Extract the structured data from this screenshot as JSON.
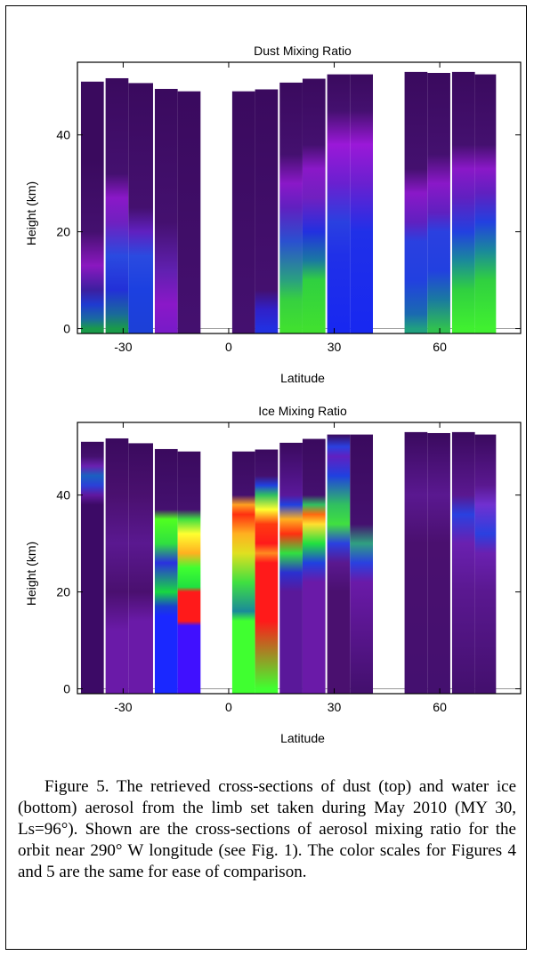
{
  "chart_data": [
    {
      "type": "heatmap",
      "title": "Dust Mixing Ratio",
      "xlabel": "Latitude",
      "ylabel": "Height (km)",
      "xlim": [
        -43,
        83
      ],
      "ylim": [
        -1,
        55
      ],
      "xticks": [
        -30,
        0,
        30,
        60
      ],
      "yticks": [
        0,
        20,
        40
      ],
      "grid": false,
      "columns": [
        {
          "x0": -42,
          "x1": -35.5,
          "top": 51,
          "stops": [
            [
              0,
              "#1a9a4a"
            ],
            [
              2,
              "#1a6aa0"
            ],
            [
              5,
              "#1f3ad0"
            ],
            [
              8,
              "#3c1fa0"
            ],
            [
              13,
              "#8a18c0"
            ],
            [
              20,
              "#44106f"
            ],
            [
              35,
              "#3a0a5e"
            ],
            [
              51,
              "#3a0a5e"
            ]
          ]
        },
        {
          "x0": -35,
          "x1": -28.5,
          "top": 51.7,
          "stops": [
            [
              0,
              "#1a9a4a"
            ],
            [
              3,
              "#1a6a9a"
            ],
            [
              8,
              "#2230d8"
            ],
            [
              15,
              "#2a4ae0"
            ],
            [
              22,
              "#7020c0"
            ],
            [
              27,
              "#8a18c8"
            ],
            [
              32,
              "#44106f"
            ],
            [
              51.7,
              "#3a0a5e"
            ]
          ]
        },
        {
          "x0": -28.5,
          "x1": -21.5,
          "top": 50.7,
          "stops": [
            [
              0,
              "#1c40d8"
            ],
            [
              8,
              "#1c40e0"
            ],
            [
              15,
              "#2a4ae0"
            ],
            [
              20,
              "#6020c0"
            ],
            [
              25,
              "#44106f"
            ],
            [
              50.7,
              "#3a0a5e"
            ]
          ]
        },
        {
          "x0": -21,
          "x1": -14.5,
          "top": 49.5,
          "stops": [
            [
              0,
              "#7a1ac8"
            ],
            [
              5,
              "#8a18c8"
            ],
            [
              12,
              "#6020b0"
            ],
            [
              22,
              "#44106f"
            ],
            [
              49.5,
              "#3a0a5e"
            ]
          ]
        },
        {
          "x0": -14.5,
          "x1": -8,
          "top": 49,
          "stops": [
            [
              0,
              "#44106f"
            ],
            [
              49,
              "#3a0a5e"
            ]
          ]
        },
        {
          "x0": 1,
          "x1": 7.5,
          "top": 49,
          "stops": [
            [
              0,
              "#44106f"
            ],
            [
              49,
              "#3a0a5e"
            ]
          ]
        },
        {
          "x0": 7.5,
          "x1": 14,
          "top": 49.4,
          "stops": [
            [
              0,
              "#2230e0"
            ],
            [
              4,
              "#3020c8"
            ],
            [
              8,
              "#44106f"
            ],
            [
              49.4,
              "#3a0a5e"
            ]
          ]
        },
        {
          "x0": 14.5,
          "x1": 21,
          "top": 50.8,
          "stops": [
            [
              0,
              "#40e030"
            ],
            [
              6,
              "#36d040"
            ],
            [
              10,
              "#2aa080"
            ],
            [
              18,
              "#2a50d0"
            ],
            [
              25,
              "#6020c0"
            ],
            [
              30,
              "#8a18c8"
            ],
            [
              36,
              "#44106f"
            ],
            [
              50.8,
              "#3a0a5e"
            ]
          ]
        },
        {
          "x0": 21,
          "x1": 27.5,
          "top": 51.6,
          "stops": [
            [
              0,
              "#40e030"
            ],
            [
              10,
              "#30d040"
            ],
            [
              14,
              "#1a7aa0"
            ],
            [
              20,
              "#2230e0"
            ],
            [
              27,
              "#7020c0"
            ],
            [
              33,
              "#8a18c8"
            ],
            [
              38,
              "#44106f"
            ],
            [
              51.6,
              "#3a0a5e"
            ]
          ]
        },
        {
          "x0": 28,
          "x1": 34.5,
          "top": 52.5,
          "stops": [
            [
              0,
              "#1828f0"
            ],
            [
              15,
              "#2030e8"
            ],
            [
              22,
              "#2a40e0"
            ],
            [
              30,
              "#6a20d0"
            ],
            [
              38,
              "#9a18d8"
            ],
            [
              45,
              "#44106f"
            ],
            [
              52.5,
              "#3a0a5e"
            ]
          ]
        },
        {
          "x0": 34.5,
          "x1": 41,
          "top": 52.5,
          "stops": [
            [
              0,
              "#1828f0"
            ],
            [
              20,
              "#2030e8"
            ],
            [
              30,
              "#6a20d0"
            ],
            [
              38,
              "#9a18d8"
            ],
            [
              45,
              "#44106f"
            ],
            [
              52.5,
              "#3a0a5e"
            ]
          ]
        },
        {
          "x0": 50,
          "x1": 56.5,
          "top": 53,
          "stops": [
            [
              0,
              "#20a080"
            ],
            [
              3,
              "#1a6ab0"
            ],
            [
              10,
              "#2240e0"
            ],
            [
              18,
              "#2a40e0"
            ],
            [
              22,
              "#6020c0"
            ],
            [
              28,
              "#8a18c8"
            ],
            [
              33,
              "#44106f"
            ],
            [
              53,
              "#3a0a5e"
            ]
          ]
        },
        {
          "x0": 56.5,
          "x1": 63,
          "top": 52.8,
          "stops": [
            [
              0,
              "#30c050"
            ],
            [
              6,
              "#1a7aa0"
            ],
            [
              12,
              "#2240e0"
            ],
            [
              20,
              "#2a40e0"
            ],
            [
              24,
              "#6020c0"
            ],
            [
              30,
              "#8a18c8"
            ],
            [
              36,
              "#44106f"
            ],
            [
              52.8,
              "#3a0a5e"
            ]
          ]
        },
        {
          "x0": 63.5,
          "x1": 70,
          "top": 53,
          "stops": [
            [
              0,
              "#40f030"
            ],
            [
              8,
              "#30d040"
            ],
            [
              14,
              "#1a8a9a"
            ],
            [
              20,
              "#2240e0"
            ],
            [
              27,
              "#6020c0"
            ],
            [
              33,
              "#8a18c8"
            ],
            [
              38,
              "#44106f"
            ],
            [
              53,
              "#3a0a5e"
            ]
          ]
        },
        {
          "x0": 70,
          "x1": 76,
          "top": 52.5,
          "stops": [
            [
              0,
              "#40f030"
            ],
            [
              10,
              "#30d040"
            ],
            [
              16,
              "#1a8a9a"
            ],
            [
              22,
              "#2240e0"
            ],
            [
              28,
              "#6020c0"
            ],
            [
              33,
              "#8a18c8"
            ],
            [
              38,
              "#44106f"
            ],
            [
              52.5,
              "#3a0a5e"
            ]
          ]
        }
      ]
    },
    {
      "type": "heatmap",
      "title": "Ice Mixing Ratio",
      "xlabel": "Latitude",
      "ylabel": "Height (km)",
      "xlim": [
        -43,
        83
      ],
      "ylim": [
        -1,
        55
      ],
      "xticks": [
        -30,
        0,
        30,
        60
      ],
      "yticks": [
        0,
        20,
        40
      ],
      "grid": false,
      "columns": [
        {
          "x0": -42,
          "x1": -35.5,
          "top": 51,
          "stops": [
            [
              0,
              "#3c0a66"
            ],
            [
              38,
              "#3c0a66"
            ],
            [
              40,
              "#6018a0"
            ],
            [
              42,
              "#2a40d8"
            ],
            [
              44,
              "#1a60c0"
            ],
            [
              46,
              "#6a20b0"
            ],
            [
              48,
              "#44106f"
            ],
            [
              51,
              "#3a0a5e"
            ]
          ]
        },
        {
          "x0": -35,
          "x1": -28.5,
          "top": 51.7,
          "stops": [
            [
              0,
              "#6a1aa8"
            ],
            [
              12,
              "#6a1aa8"
            ],
            [
              20,
              "#4a106f"
            ],
            [
              30,
              "#5a1890"
            ],
            [
              40,
              "#4a106f"
            ],
            [
              51.7,
              "#3a0a5e"
            ]
          ]
        },
        {
          "x0": -28.5,
          "x1": -21.5,
          "top": 50.7,
          "stops": [
            [
              0,
              "#6a1aa8"
            ],
            [
              14,
              "#6a1aa8"
            ],
            [
              20,
              "#4a106f"
            ],
            [
              30,
              "#5a1890"
            ],
            [
              40,
              "#4a106f"
            ],
            [
              50.7,
              "#3a0a5e"
            ]
          ]
        },
        {
          "x0": -21,
          "x1": -14.5,
          "top": 49.5,
          "stops": [
            [
              0,
              "#1a28ff"
            ],
            [
              15,
              "#1a28ff"
            ],
            [
              17,
              "#1a40d0"
            ],
            [
              20,
              "#18d840"
            ],
            [
              26,
              "#2a30e0"
            ],
            [
              30,
              "#30e040"
            ],
            [
              35,
              "#50ff20"
            ],
            [
              37,
              "#44106f"
            ],
            [
              49.5,
              "#3a0a5e"
            ]
          ]
        },
        {
          "x0": -14.5,
          "x1": -8,
          "top": 49,
          "stops": [
            [
              0,
              "#4010ff"
            ],
            [
              13,
              "#4010ff"
            ],
            [
              14,
              "#ff1a1a"
            ],
            [
              20,
              "#ff1a1a"
            ],
            [
              21,
              "#20e040"
            ],
            [
              25,
              "#40ff30"
            ],
            [
              28,
              "#ffb020"
            ],
            [
              32,
              "#ffff30"
            ],
            [
              35,
              "#40e040"
            ],
            [
              37,
              "#44106f"
            ],
            [
              49,
              "#3a0a5e"
            ]
          ]
        },
        {
          "x0": 1,
          "x1": 7.5,
          "top": 49,
          "stops": [
            [
              0,
              "#40ff30"
            ],
            [
              14,
              "#40ff30"
            ],
            [
              16,
              "#1a8a9a"
            ],
            [
              22,
              "#40e040"
            ],
            [
              28,
              "#e0e020"
            ],
            [
              32,
              "#ffb020"
            ],
            [
              36,
              "#ff3010"
            ],
            [
              38,
              "#ffa020"
            ],
            [
              40,
              "#44106f"
            ],
            [
              49,
              "#3a0a5e"
            ]
          ]
        },
        {
          "x0": 7.5,
          "x1": 14,
          "top": 49.4,
          "stops": [
            [
              0,
              "#40ff30"
            ],
            [
              14,
              "#ff1a1a"
            ],
            [
              26,
              "#ff1a1a"
            ],
            [
              28,
              "#ff8a20"
            ],
            [
              30,
              "#ff1a1a"
            ],
            [
              34,
              "#ff3a10"
            ],
            [
              37,
              "#ffff30"
            ],
            [
              40,
              "#30c060"
            ],
            [
              42,
              "#2040e0"
            ],
            [
              44,
              "#44106f"
            ],
            [
              49.4,
              "#3a0a5e"
            ]
          ]
        },
        {
          "x0": 14.5,
          "x1": 21,
          "top": 50.8,
          "stops": [
            [
              0,
              "#5a189a"
            ],
            [
              20,
              "#5a189a"
            ],
            [
              24,
              "#2a30d0"
            ],
            [
              28,
              "#30e040"
            ],
            [
              32,
              "#ff3010"
            ],
            [
              35,
              "#ffb020"
            ],
            [
              38,
              "#2040e0"
            ],
            [
              40,
              "#5a189a"
            ],
            [
              50.8,
              "#3a0a5e"
            ]
          ]
        },
        {
          "x0": 21,
          "x1": 27.5,
          "top": 51.6,
          "stops": [
            [
              0,
              "#6a1aa8"
            ],
            [
              22,
              "#6a1aa8"
            ],
            [
              26,
              "#2040e0"
            ],
            [
              30,
              "#20e040"
            ],
            [
              34,
              "#ffe030"
            ],
            [
              36,
              "#ff6a10"
            ],
            [
              38,
              "#30c060"
            ],
            [
              40,
              "#44106f"
            ],
            [
              51.6,
              "#3a0a5e"
            ]
          ]
        },
        {
          "x0": 28,
          "x1": 34.5,
          "top": 52.5,
          "stops": [
            [
              0,
              "#4a106f"
            ],
            [
              20,
              "#4a106f"
            ],
            [
              26,
              "#5a1890"
            ],
            [
              30,
              "#2a40e0"
            ],
            [
              34,
              "#40e040"
            ],
            [
              38,
              "#30c060"
            ],
            [
              44,
              "#2040e0"
            ],
            [
              48,
              "#6020c0"
            ],
            [
              50,
              "#2a40e0"
            ],
            [
              52.5,
              "#3a0a5e"
            ]
          ]
        },
        {
          "x0": 34.5,
          "x1": 41,
          "top": 52.5,
          "stops": [
            [
              0,
              "#44106f"
            ],
            [
              22,
              "#6a1aa8"
            ],
            [
              26,
              "#2a40e0"
            ],
            [
              30,
              "#30a080"
            ],
            [
              34,
              "#44106f"
            ],
            [
              52.5,
              "#3a0a5e"
            ]
          ]
        },
        {
          "x0": 50,
          "x1": 56.5,
          "top": 53,
          "stops": [
            [
              0,
              "#44106f"
            ],
            [
              30,
              "#4a106f"
            ],
            [
              40,
              "#5a1890"
            ],
            [
              53,
              "#3a0a5e"
            ]
          ]
        },
        {
          "x0": 56.5,
          "x1": 63,
          "top": 52.8,
          "stops": [
            [
              0,
              "#44106f"
            ],
            [
              30,
              "#4a106f"
            ],
            [
              40,
              "#5a1890"
            ],
            [
              52.8,
              "#3a0a5e"
            ]
          ]
        },
        {
          "x0": 63.5,
          "x1": 70,
          "top": 53,
          "stops": [
            [
              0,
              "#44106f"
            ],
            [
              20,
              "#5a1890"
            ],
            [
              30,
              "#6a20b0"
            ],
            [
              36,
              "#2a40e0"
            ],
            [
              40,
              "#5a1890"
            ],
            [
              53,
              "#3a0a5e"
            ]
          ]
        },
        {
          "x0": 70,
          "x1": 76,
          "top": 52.5,
          "stops": [
            [
              0,
              "#44106f"
            ],
            [
              20,
              "#5a1890"
            ],
            [
              28,
              "#6a20b0"
            ],
            [
              32,
              "#2a40e0"
            ],
            [
              38,
              "#7030d0"
            ],
            [
              42,
              "#5a1890"
            ],
            [
              52.5,
              "#3a0a5e"
            ]
          ]
        }
      ]
    }
  ],
  "caption": "Figure 5. The retrieved cross-sections of dust (top) and water ice (bottom) aerosol from the limb set taken during May 2010 (MY 30, Ls=96°). Shown are the cross-sections of aerosol mixing ratio for the orbit near 290° W longitude (see Fig. 1). The color scales for Figures 4 and 5 are the same for ease of comparison."
}
